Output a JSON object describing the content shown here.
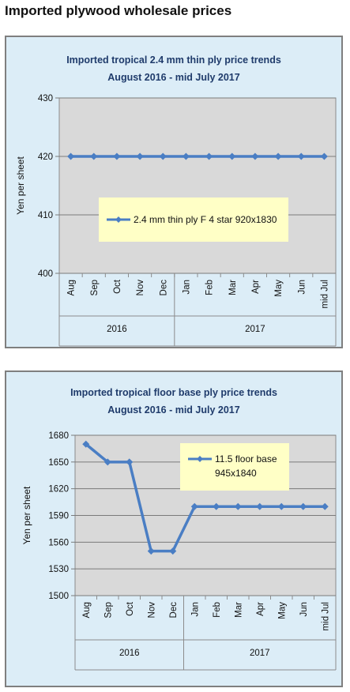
{
  "page_title": "Imported plywood wholesale prices",
  "colors": {
    "series": "#4a7ec4",
    "plot_bg": "#d9d9d9",
    "legend_bg": "#ffffc6",
    "panel_bg": "#dcedf7",
    "title": "#1f3b6b"
  },
  "chart_data": [
    {
      "type": "line",
      "title": "Imported tropical 2.4 mm thin ply price trends",
      "subtitle": "August 2016 - mid July 2017",
      "ylabel": "Yen per sheet",
      "ylim": [
        400,
        430
      ],
      "yticks": [
        400,
        410,
        420,
        430
      ],
      "categories": [
        "Aug",
        "Sep",
        "Oct",
        "Nov",
        "Dec",
        "Jan",
        "Feb",
        "Mar",
        "Apr",
        "May",
        "Jun",
        "mid Jul"
      ],
      "year_groups": [
        {
          "label": "2016",
          "count": 5
        },
        {
          "label": "2017",
          "count": 7
        }
      ],
      "grid": true,
      "legend": "center",
      "series": [
        {
          "name": "2.4 mm thin ply F 4 star 920x1830",
          "values": [
            420,
            420,
            420,
            420,
            420,
            420,
            420,
            420,
            420,
            420,
            420,
            420
          ]
        }
      ]
    },
    {
      "type": "line",
      "title": "Imported tropical floor base ply price trends",
      "subtitle": "August 2016 - mid July 2017",
      "ylabel": "Yen per sheet",
      "ylim": [
        1500,
        1680
      ],
      "yticks": [
        1500,
        1530,
        1560,
        1590,
        1620,
        1650,
        1680
      ],
      "categories": [
        "Aug",
        "Sep",
        "Oct",
        "Nov",
        "Dec",
        "Jan",
        "Feb",
        "Mar",
        "Apr",
        "May",
        "Jun",
        "mid Jul"
      ],
      "year_groups": [
        {
          "label": "2016",
          "count": 5
        },
        {
          "label": "2017",
          "count": 7
        }
      ],
      "grid": true,
      "legend": "top-right",
      "series": [
        {
          "name": "11.5 floor base 945x1840",
          "values": [
            1670,
            1650,
            1650,
            1550,
            1550,
            1600,
            1600,
            1600,
            1600,
            1600,
            1600,
            1600
          ]
        }
      ]
    }
  ]
}
